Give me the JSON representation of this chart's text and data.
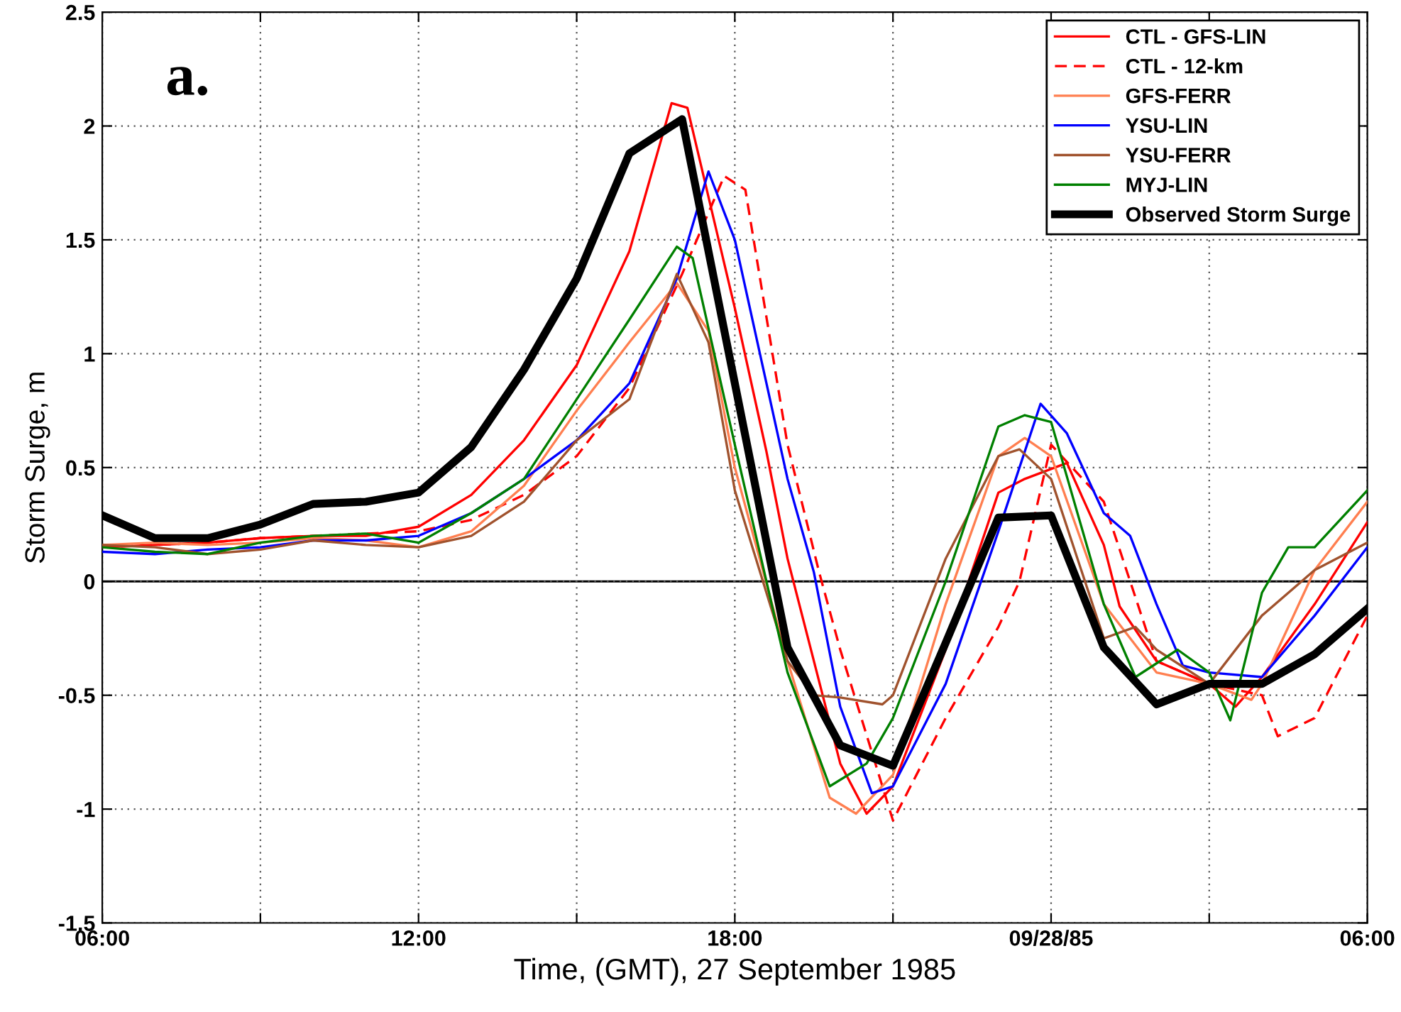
{
  "chart_data": {
    "type": "line",
    "xlabel": "Time, (GMT), 27 September 1985",
    "ylabel": "Storm Surge, m",
    "annotations": [
      "a."
    ],
    "xlim": [
      "1985-09-27T06:00",
      "1985-09-28T06:00"
    ],
    "ylim": [
      -1.5,
      2.5
    ],
    "xticks": [
      {
        "value": "1985-09-27T06:00",
        "label": "06:00"
      },
      {
        "value": "1985-09-27T09:00",
        "label": null
      },
      {
        "value": "1985-09-27T12:00",
        "label": "12:00"
      },
      {
        "value": "1985-09-27T15:00",
        "label": null
      },
      {
        "value": "1985-09-27T18:00",
        "label": "18:00"
      },
      {
        "value": "1985-09-27T21:00",
        "label": null
      },
      {
        "value": "1985-09-28T00:00",
        "label": "09/28/85"
      },
      {
        "value": "1985-09-28T03:00",
        "label": null
      },
      {
        "value": "1985-09-28T06:00",
        "label": "06:00"
      }
    ],
    "yticks": [
      -1.5,
      -1,
      -0.5,
      0,
      0.5,
      1,
      1.5,
      2,
      2.5
    ],
    "grid": true,
    "legend": "top right",
    "marker": "none",
    "ref_lines": [
      {
        "axis": "y",
        "value": 0,
        "label": null,
        "color": "#000000",
        "line_style": "solid"
      }
    ],
    "series": [
      {
        "name": "CTL - GFS-LIN",
        "color": "#ff0000",
        "line_style": "solid",
        "x": [
          "1985-09-27T06:00",
          "1985-09-27T07:00",
          "1985-09-27T08:00",
          "1985-09-27T09:00",
          "1985-09-27T10:00",
          "1985-09-27T11:00",
          "1985-09-27T12:00",
          "1985-09-27T13:00",
          "1985-09-27T14:00",
          "1985-09-27T15:00",
          "1985-09-27T16:00",
          "1985-09-27T16:48",
          "1985-09-27T17:06",
          "1985-09-27T18:00",
          "1985-09-27T18:36",
          "1985-09-27T19:00",
          "1985-09-27T20:00",
          "1985-09-27T20:30",
          "1985-09-27T21:00",
          "1985-09-27T22:00",
          "1985-09-27T23:00",
          "1985-09-27T23:30",
          "1985-09-28T00:18",
          "1985-09-28T01:00",
          "1985-09-28T01:18",
          "1985-09-28T02:00",
          "1985-09-28T03:00",
          "1985-09-28T03:30",
          "1985-09-28T04:00",
          "1985-09-28T05:00",
          "1985-09-28T06:00"
        ],
        "values": [
          0.15,
          0.16,
          0.17,
          0.19,
          0.2,
          0.2,
          0.24,
          0.38,
          0.62,
          0.95,
          1.45,
          2.1,
          2.08,
          1.2,
          0.57,
          0.1,
          -0.8,
          -1.02,
          -0.9,
          -0.3,
          0.39,
          0.45,
          0.52,
          0.16,
          -0.11,
          -0.35,
          -0.45,
          -0.55,
          -0.42,
          -0.1,
          0.26
        ]
      },
      {
        "name": "CTL - 12-km",
        "color": "#ff0000",
        "line_style": "dashed",
        "x": [
          "1985-09-27T06:00",
          "1985-09-27T07:00",
          "1985-09-27T08:00",
          "1985-09-27T09:00",
          "1985-09-27T10:00",
          "1985-09-27T11:00",
          "1985-09-27T12:00",
          "1985-09-27T13:00",
          "1985-09-27T14:00",
          "1985-09-27T15:00",
          "1985-09-27T16:00",
          "1985-09-27T17:00",
          "1985-09-27T17:48",
          "1985-09-27T18:12",
          "1985-09-27T19:00",
          "1985-09-27T19:36",
          "1985-09-27T20:00",
          "1985-09-27T21:00",
          "1985-09-27T22:00",
          "1985-09-27T23:00",
          "1985-09-27T23:24",
          "1985-09-28T00:00",
          "1985-09-28T01:00",
          "1985-09-28T02:00",
          "1985-09-28T03:00",
          "1985-09-28T04:00",
          "1985-09-28T04:18",
          "1985-09-28T05:00",
          "1985-09-28T06:00"
        ],
        "values": [
          0.15,
          0.16,
          0.17,
          0.19,
          0.2,
          0.21,
          0.22,
          0.27,
          0.38,
          0.55,
          0.85,
          1.35,
          1.78,
          1.72,
          0.6,
          0.04,
          -0.3,
          -1.05,
          -0.6,
          -0.2,
          0.0,
          0.6,
          0.35,
          -0.35,
          -0.45,
          -0.5,
          -0.68,
          -0.6,
          -0.15
        ]
      },
      {
        "name": "GFS-FERR",
        "color": "#ff7f50",
        "line_style": "solid",
        "x": [
          "1985-09-27T06:00",
          "1985-09-27T07:00",
          "1985-09-27T08:00",
          "1985-09-27T09:00",
          "1985-09-27T10:00",
          "1985-09-27T11:00",
          "1985-09-27T12:00",
          "1985-09-27T13:00",
          "1985-09-27T14:00",
          "1985-09-27T15:00",
          "1985-09-27T16:00",
          "1985-09-27T16:54",
          "1985-09-27T17:30",
          "1985-09-27T18:00",
          "1985-09-27T19:00",
          "1985-09-27T19:48",
          "1985-09-27T20:18",
          "1985-09-27T21:00",
          "1985-09-27T22:00",
          "1985-09-27T23:00",
          "1985-09-27T23:30",
          "1985-09-28T00:00",
          "1985-09-28T01:00",
          "1985-09-28T02:00",
          "1985-09-28T03:00",
          "1985-09-28T03:48",
          "1985-09-28T04:00",
          "1985-09-28T05:00",
          "1985-09-28T06:00"
        ],
        "values": [
          0.16,
          0.17,
          0.16,
          0.17,
          0.19,
          0.18,
          0.15,
          0.22,
          0.42,
          0.75,
          1.05,
          1.31,
          1.1,
          0.5,
          -0.35,
          -0.95,
          -1.02,
          -0.85,
          -0.1,
          0.55,
          0.63,
          0.55,
          -0.1,
          -0.4,
          -0.45,
          -0.52,
          -0.45,
          0.05,
          0.35
        ]
      },
      {
        "name": "YSU-LIN",
        "color": "#0000ff",
        "line_style": "solid",
        "x": [
          "1985-09-27T06:00",
          "1985-09-27T07:00",
          "1985-09-27T08:00",
          "1985-09-27T09:00",
          "1985-09-27T10:00",
          "1985-09-27T11:00",
          "1985-09-27T12:00",
          "1985-09-27T13:00",
          "1985-09-27T14:00",
          "1985-09-27T15:00",
          "1985-09-27T16:00",
          "1985-09-27T16:54",
          "1985-09-27T17:30",
          "1985-09-27T18:00",
          "1985-09-27T19:00",
          "1985-09-27T19:30",
          "1985-09-27T20:00",
          "1985-09-27T20:36",
          "1985-09-27T21:00",
          "1985-09-27T22:00",
          "1985-09-27T23:00",
          "1985-09-27T23:48",
          "1985-09-28T00:18",
          "1985-09-28T01:00",
          "1985-09-28T01:30",
          "1985-09-28T02:00",
          "1985-09-28T02:30",
          "1985-09-28T03:00",
          "1985-09-28T04:00",
          "1985-09-28T05:00",
          "1985-09-28T06:00"
        ],
        "values": [
          0.13,
          0.12,
          0.14,
          0.15,
          0.18,
          0.18,
          0.2,
          0.3,
          0.45,
          0.62,
          0.87,
          1.33,
          1.8,
          1.5,
          0.45,
          0.04,
          -0.55,
          -0.93,
          -0.9,
          -0.45,
          0.22,
          0.78,
          0.65,
          0.3,
          0.2,
          -0.1,
          -0.37,
          -0.4,
          -0.42,
          -0.15,
          0.15
        ]
      },
      {
        "name": "YSU-FERR",
        "color": "#a0522d",
        "line_style": "solid",
        "x": [
          "1985-09-27T06:00",
          "1985-09-27T07:00",
          "1985-09-27T08:00",
          "1985-09-27T09:00",
          "1985-09-27T10:00",
          "1985-09-27T11:00",
          "1985-09-27T12:00",
          "1985-09-27T13:00",
          "1985-09-27T14:00",
          "1985-09-27T15:00",
          "1985-09-27T16:00",
          "1985-09-27T16:54",
          "1985-09-27T17:30",
          "1985-09-27T18:00",
          "1985-09-27T19:00",
          "1985-09-27T19:30",
          "1985-09-27T20:00",
          "1985-09-27T20:48",
          "1985-09-27T21:00",
          "1985-09-27T22:00",
          "1985-09-27T23:00",
          "1985-09-27T23:24",
          "1985-09-28T00:00",
          "1985-09-28T01:00",
          "1985-09-28T01:36",
          "1985-09-28T02:00",
          "1985-09-28T03:00",
          "1985-09-28T04:00",
          "1985-09-28T05:00",
          "1985-09-28T06:00"
        ],
        "values": [
          0.16,
          0.15,
          0.12,
          0.14,
          0.18,
          0.16,
          0.15,
          0.2,
          0.35,
          0.62,
          0.8,
          1.35,
          1.05,
          0.4,
          -0.35,
          -0.5,
          -0.51,
          -0.54,
          -0.5,
          0.1,
          0.55,
          0.58,
          0.45,
          -0.25,
          -0.2,
          -0.3,
          -0.45,
          -0.15,
          0.05,
          0.17
        ]
      },
      {
        "name": "MYJ-LIN",
        "color": "#008000",
        "line_style": "solid",
        "x": [
          "1985-09-27T06:00",
          "1985-09-27T07:00",
          "1985-09-27T08:00",
          "1985-09-27T09:00",
          "1985-09-27T10:00",
          "1985-09-27T11:00",
          "1985-09-27T12:00",
          "1985-09-27T13:00",
          "1985-09-27T14:00",
          "1985-09-27T15:00",
          "1985-09-27T16:00",
          "1985-09-27T16:54",
          "1985-09-27T17:12",
          "1985-09-27T18:00",
          "1985-09-27T19:00",
          "1985-09-27T19:48",
          "1985-09-27T20:30",
          "1985-09-27T21:00",
          "1985-09-27T22:00",
          "1985-09-27T23:00",
          "1985-09-27T23:30",
          "1985-09-28T00:00",
          "1985-09-28T01:00",
          "1985-09-28T01:36",
          "1985-09-28T02:24",
          "1985-09-28T03:00",
          "1985-09-28T03:24",
          "1985-09-28T04:00",
          "1985-09-28T04:30",
          "1985-09-28T05:00",
          "1985-09-28T06:00"
        ],
        "values": [
          0.15,
          0.13,
          0.12,
          0.17,
          0.2,
          0.21,
          0.17,
          0.3,
          0.45,
          0.8,
          1.15,
          1.47,
          1.42,
          0.6,
          -0.4,
          -0.9,
          -0.8,
          -0.6,
          0.0,
          0.68,
          0.73,
          0.7,
          -0.1,
          -0.42,
          -0.3,
          -0.4,
          -0.61,
          -0.05,
          0.15,
          0.15,
          0.4
        ]
      },
      {
        "name": "Observed Storm Surge",
        "color": "#000000",
        "line_style": "solid",
        "x": [
          "1985-09-27T06:00",
          "1985-09-27T07:00",
          "1985-09-27T08:00",
          "1985-09-27T09:00",
          "1985-09-27T10:00",
          "1985-09-27T11:00",
          "1985-09-27T12:00",
          "1985-09-27T13:00",
          "1985-09-27T14:00",
          "1985-09-27T15:00",
          "1985-09-27T16:00",
          "1985-09-27T17:00",
          "1985-09-27T18:00",
          "1985-09-27T19:00",
          "1985-09-27T20:00",
          "1985-09-27T21:00",
          "1985-09-27T22:00",
          "1985-09-27T23:00",
          "1985-09-28T00:00",
          "1985-09-28T01:00",
          "1985-09-28T02:00",
          "1985-09-28T03:00",
          "1985-09-28T04:00",
          "1985-09-28T05:00",
          "1985-09-28T06:00"
        ],
        "values": [
          0.29,
          0.19,
          0.19,
          0.25,
          0.34,
          0.35,
          0.39,
          0.59,
          0.93,
          1.33,
          1.88,
          2.03,
          0.87,
          -0.29,
          -0.72,
          -0.81,
          -0.27,
          0.28,
          0.29,
          -0.29,
          -0.54,
          -0.45,
          -0.45,
          -0.32,
          -0.12
        ]
      }
    ]
  }
}
